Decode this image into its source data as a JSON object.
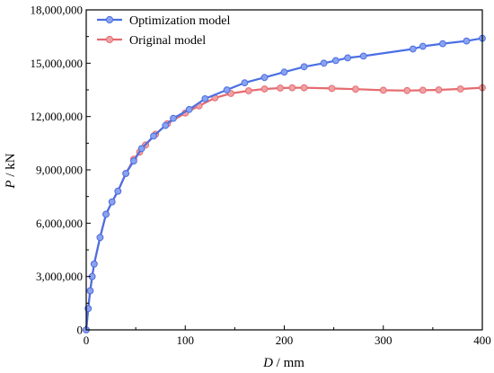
{
  "chart_data": {
    "type": "line",
    "xlabel_italic": "D",
    "xlabel_unit": " / mm",
    "ylabel_italic": "P",
    "ylabel_unit": " / kN",
    "xlim": [
      0,
      400
    ],
    "ylim": [
      0,
      18000000
    ],
    "x_ticks": [
      0,
      100,
      200,
      300,
      400
    ],
    "x_tick_labels": [
      "0",
      "100",
      "200",
      "300",
      "400"
    ],
    "y_ticks": [
      0,
      3000000,
      6000000,
      9000000,
      12000000,
      15000000,
      18000000
    ],
    "y_tick_labels": [
      "0",
      "3,000,000",
      "6,000,000",
      "9,000,000",
      "12,000,000",
      "15,000,000",
      "18,000,000"
    ],
    "grid": false,
    "legend_position": "top-left",
    "series": [
      {
        "name": "Optimization model",
        "color": "#4a6fe3",
        "marker_color": "#8aa2f0",
        "x": [
          0,
          2,
          4,
          6,
          8,
          14,
          20,
          26,
          32,
          40,
          48,
          56,
          68,
          80,
          88,
          104,
          120,
          142,
          160,
          180,
          200,
          220,
          240,
          252,
          264,
          280,
          330,
          340,
          360,
          384,
          400
        ],
        "y": [
          0,
          1200000,
          2200000,
          3000000,
          3700000,
          5200000,
          6500000,
          7200000,
          7800000,
          8800000,
          9500000,
          10200000,
          10900000,
          11500000,
          11900000,
          12400000,
          13000000,
          13500000,
          13900000,
          14200000,
          14500000,
          14800000,
          15000000,
          15150000,
          15300000,
          15400000,
          15800000,
          15950000,
          16100000,
          16250000,
          16400000
        ]
      },
      {
        "name": "Original model",
        "color": "#e56b6f",
        "marker_color": "#f0a0a3",
        "x": [
          0,
          2,
          4,
          6,
          8,
          14,
          20,
          26,
          32,
          40,
          48,
          54,
          60,
          70,
          82,
          100,
          114,
          130,
          146,
          164,
          180,
          196,
          208,
          220,
          248,
          272,
          300,
          324,
          340,
          356,
          378,
          400
        ],
        "y": [
          0,
          1200000,
          2200000,
          3000000,
          3700000,
          5200000,
          6500000,
          7200000,
          7800000,
          8800000,
          9600000,
          10000000,
          10400000,
          11000000,
          11600000,
          12200000,
          12600000,
          13050000,
          13300000,
          13450000,
          13550000,
          13600000,
          13620000,
          13620000,
          13580000,
          13540000,
          13480000,
          13460000,
          13480000,
          13500000,
          13550000,
          13620000
        ]
      }
    ]
  }
}
